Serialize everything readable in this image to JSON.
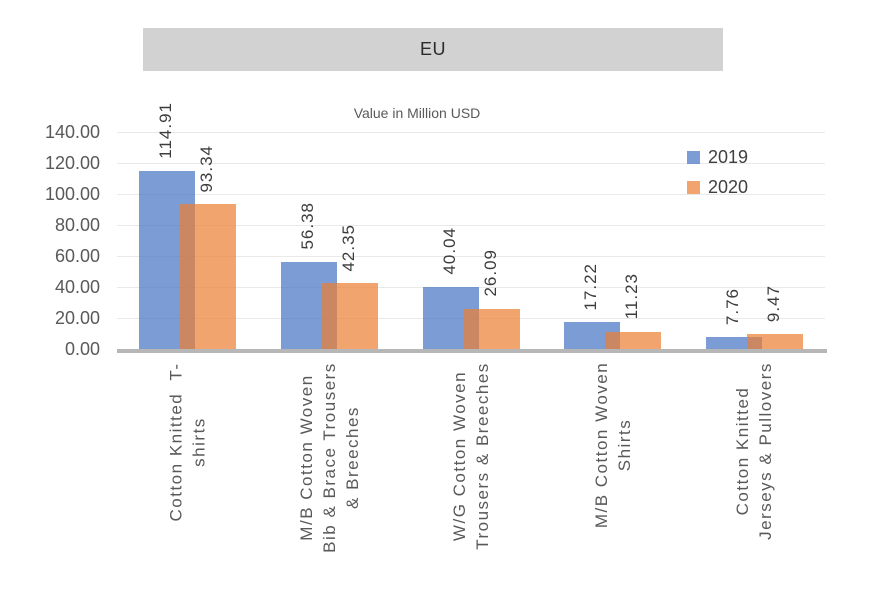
{
  "chart_data": {
    "type": "bar",
    "title": "EU",
    "subtitle": "Value in Million USD",
    "categories": [
      {
        "lines": [
          "Cotton Knitted  T-",
          "shirts"
        ]
      },
      {
        "lines": [
          "M/B Cotton Woven",
          "Bib & Brace Trousers",
          "& Breeches"
        ]
      },
      {
        "lines": [
          "W/G Cotton Woven",
          "Trousers & Breeches"
        ]
      },
      {
        "lines": [
          "M/B Cotton Woven",
          "Shirts"
        ]
      },
      {
        "lines": [
          "Cotton Knitted",
          "Jerseys & Pullovers"
        ]
      }
    ],
    "series": [
      {
        "name": "2019",
        "color": "#4472C4",
        "fill_opacity": 0.7,
        "values": [
          114.91,
          56.38,
          40.04,
          17.22,
          7.76
        ]
      },
      {
        "name": "2020",
        "color": "#ED7D31",
        "fill_opacity": 0.7,
        "values": [
          93.34,
          42.35,
          26.09,
          11.23,
          9.47
        ]
      }
    ],
    "value_labels": {
      "2019": [
        "114.91",
        "56.38",
        "40.04",
        "17.22",
        "7.76"
      ],
      "2020": [
        "93.34",
        "42.35",
        "26.09",
        "11.23",
        "9.47"
      ]
    },
    "y_axis": {
      "min": 0,
      "max": 140,
      "step": 20,
      "tick_labels": [
        "0.00",
        "20.00",
        "40.00",
        "60.00",
        "80.00",
        "100.00",
        "120.00",
        "140.00"
      ]
    },
    "legend": {
      "position": "top-right",
      "entries": [
        "2019",
        "2020"
      ]
    },
    "grid": true,
    "bar_overlap_pct": 27
  },
  "colors": {
    "title_band_bg": "#D2D2D2",
    "title_text": "#2B2B2B",
    "subtitle_text": "#595959",
    "axis_text": "#595959",
    "category_text": "#595959",
    "value_label_text": "#3C3C3C",
    "legend_text": "#404040",
    "gridline": "#E9E9E9",
    "axis_line": "#B7B7B7",
    "series_2019": "#4472C4",
    "series_2020": "#ED7D31"
  }
}
